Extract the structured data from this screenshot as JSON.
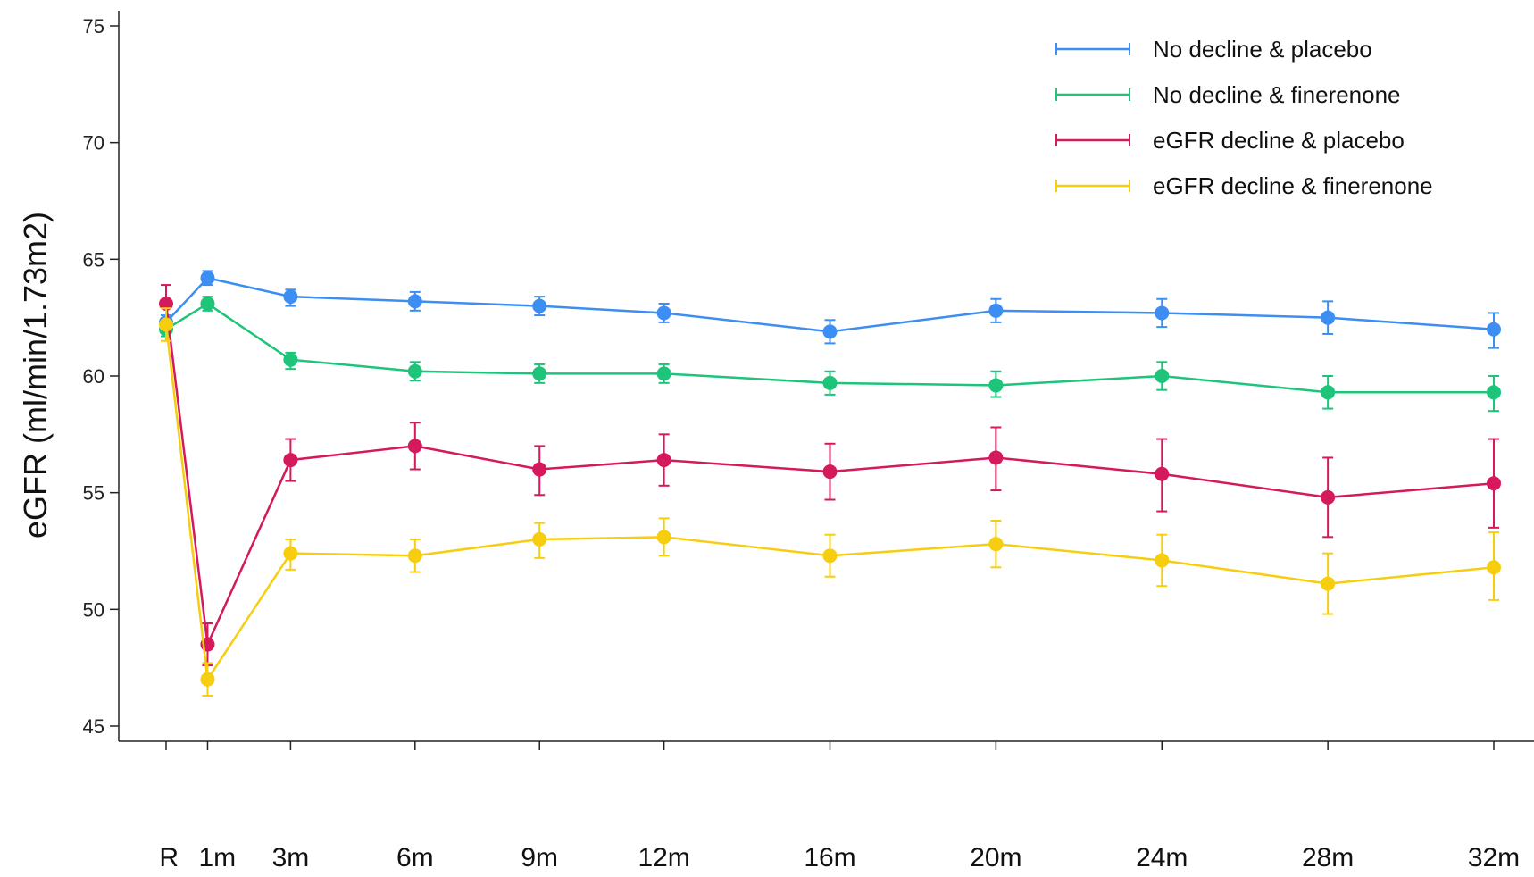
{
  "chart_data": {
    "type": "line",
    "title": "",
    "xlabel": "",
    "ylabel": "eGFR (ml/min/1.73m2)",
    "categories": [
      "R",
      "1m",
      "3m",
      "6m",
      "9m",
      "12m",
      "16m",
      "20m",
      "24m",
      "28m",
      "32m"
    ],
    "x_months": [
      0,
      1,
      3,
      6,
      9,
      12,
      16,
      20,
      24,
      28,
      32
    ],
    "ylim": [
      45,
      75
    ],
    "yticks": [
      45,
      50,
      55,
      60,
      65,
      70,
      75
    ],
    "grid": false,
    "legend_position": "top-right",
    "series": [
      {
        "name": "No decline & placebo",
        "color": "#3d8ef2",
        "values": [
          62.3,
          64.2,
          63.4,
          63.2,
          63.0,
          62.7,
          61.9,
          62.8,
          62.7,
          62.5,
          62.0
        ],
        "err_low": [
          61.9,
          63.9,
          63.0,
          62.8,
          62.6,
          62.3,
          61.4,
          62.3,
          62.1,
          61.8,
          61.2
        ],
        "err_high": [
          62.6,
          64.5,
          63.7,
          63.6,
          63.4,
          63.1,
          62.4,
          63.3,
          63.3,
          63.2,
          62.7
        ]
      },
      {
        "name": "No decline & finerenone",
        "color": "#1dc47a",
        "values": [
          62.0,
          63.1,
          60.7,
          60.2,
          60.1,
          60.1,
          59.7,
          59.6,
          60.0,
          59.3,
          59.3
        ],
        "err_low": [
          61.7,
          62.8,
          60.3,
          59.8,
          59.7,
          59.7,
          59.2,
          59.1,
          59.4,
          58.6,
          58.5
        ],
        "err_high": [
          62.3,
          63.4,
          61.0,
          60.6,
          60.5,
          60.5,
          60.2,
          60.2,
          60.6,
          60.0,
          60.0
        ]
      },
      {
        "name": "eGFR decline & placebo",
        "color": "#d4195c",
        "values": [
          63.1,
          48.5,
          56.4,
          57.0,
          56.0,
          56.4,
          55.9,
          56.5,
          55.8,
          54.8,
          55.4
        ],
        "err_low": [
          62.3,
          47.6,
          55.5,
          56.0,
          54.9,
          55.3,
          54.7,
          55.1,
          54.2,
          53.1,
          53.5
        ],
        "err_high": [
          63.9,
          49.4,
          57.3,
          58.0,
          57.0,
          57.5,
          57.1,
          57.8,
          57.3,
          56.5,
          57.3
        ]
      },
      {
        "name": "eGFR decline & finerenone",
        "color": "#f7cd10",
        "values": [
          62.2,
          47.0,
          52.4,
          52.3,
          53.0,
          53.1,
          52.3,
          52.8,
          52.1,
          51.1,
          51.8
        ],
        "err_low": [
          61.5,
          46.3,
          51.7,
          51.6,
          52.2,
          52.3,
          51.4,
          51.8,
          51.0,
          49.8,
          50.4
        ],
        "err_high": [
          62.9,
          47.7,
          53.0,
          53.0,
          53.7,
          53.9,
          53.2,
          53.8,
          53.2,
          52.4,
          53.3
        ]
      }
    ]
  }
}
